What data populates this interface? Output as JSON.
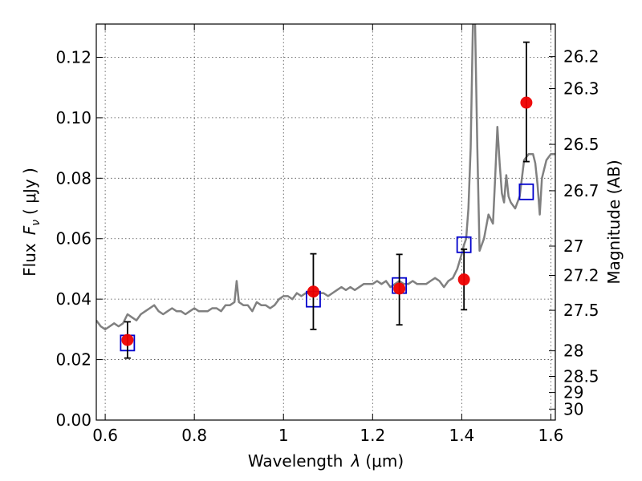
{
  "chart_data": {
    "type": "scatter",
    "xlabel": "Wavelength",
    "xlabel_symbol": "λ",
    "xlabel_unit": "(μm)",
    "ylabel": "Flux",
    "ylabel_symbol": "F",
    "ylabel_subscript": "ν",
    "ylabel_unit": "( μJy )",
    "y2label": "Magnitude (AB)",
    "xlim": [
      0.58,
      1.61
    ],
    "ylim": [
      0.0,
      0.131
    ],
    "grid": true,
    "x_ticks": [
      {
        "value": 0.6,
        "label": "0.6"
      },
      {
        "value": 0.8,
        "label": "0.8"
      },
      {
        "value": 1.0,
        "label": "1"
      },
      {
        "value": 1.2,
        "label": "1.2"
      },
      {
        "value": 1.4,
        "label": "1.4"
      },
      {
        "value": 1.6,
        "label": "1.6"
      }
    ],
    "y_ticks": [
      {
        "value": 0.0,
        "label": "0.00"
      },
      {
        "value": 0.02,
        "label": "0.02"
      },
      {
        "value": 0.04,
        "label": "0.04"
      },
      {
        "value": 0.06,
        "label": "0.06"
      },
      {
        "value": 0.08,
        "label": "0.08"
      },
      {
        "value": 0.1,
        "label": "0.10"
      },
      {
        "value": 0.12,
        "label": "0.12"
      }
    ],
    "y2_ticks": [
      {
        "value": 26.2,
        "label": "26.2"
      },
      {
        "value": 26.3,
        "label": "26.3"
      },
      {
        "value": 26.5,
        "label": "26.5"
      },
      {
        "value": 26.7,
        "label": "26.7"
      },
      {
        "value": 27.0,
        "label": "27"
      },
      {
        "value": 27.2,
        "label": "27.2"
      },
      {
        "value": 27.5,
        "label": "27.5"
      },
      {
        "value": 28.0,
        "label": "28"
      },
      {
        "value": 28.5,
        "label": "28.5"
      },
      {
        "value": 29.0,
        "label": "29"
      },
      {
        "value": 30.0,
        "label": "30"
      }
    ],
    "series": [
      {
        "kind": "line",
        "color": "#808080",
        "x": [
          0.58,
          0.59,
          0.6,
          0.61,
          0.62,
          0.63,
          0.64,
          0.65,
          0.66,
          0.67,
          0.68,
          0.69,
          0.7,
          0.71,
          0.72,
          0.73,
          0.74,
          0.75,
          0.76,
          0.77,
          0.78,
          0.79,
          0.8,
          0.81,
          0.82,
          0.83,
          0.84,
          0.85,
          0.86,
          0.87,
          0.88,
          0.89,
          0.895,
          0.9,
          0.91,
          0.92,
          0.93,
          0.94,
          0.95,
          0.96,
          0.97,
          0.98,
          0.99,
          1.0,
          1.01,
          1.02,
          1.03,
          1.04,
          1.05,
          1.06,
          1.07,
          1.08,
          1.09,
          1.1,
          1.11,
          1.12,
          1.13,
          1.14,
          1.15,
          1.16,
          1.17,
          1.18,
          1.19,
          1.2,
          1.21,
          1.22,
          1.23,
          1.24,
          1.25,
          1.26,
          1.27,
          1.28,
          1.29,
          1.3,
          1.31,
          1.32,
          1.33,
          1.34,
          1.35,
          1.36,
          1.37,
          1.38,
          1.39,
          1.4,
          1.405,
          1.41,
          1.415,
          1.42,
          1.425,
          1.43,
          1.435,
          1.44,
          1.45,
          1.46,
          1.47,
          1.475,
          1.48,
          1.485,
          1.49,
          1.495,
          1.5,
          1.505,
          1.51,
          1.52,
          1.53,
          1.54,
          1.55,
          1.56,
          1.565,
          1.57,
          1.575,
          1.58,
          1.59,
          1.6,
          1.61
        ],
        "y": [
          0.033,
          0.031,
          0.03,
          0.031,
          0.032,
          0.031,
          0.032,
          0.035,
          0.034,
          0.033,
          0.035,
          0.036,
          0.037,
          0.038,
          0.036,
          0.035,
          0.036,
          0.037,
          0.036,
          0.036,
          0.035,
          0.036,
          0.037,
          0.036,
          0.036,
          0.036,
          0.037,
          0.037,
          0.036,
          0.038,
          0.038,
          0.039,
          0.046,
          0.039,
          0.038,
          0.038,
          0.036,
          0.039,
          0.038,
          0.038,
          0.037,
          0.038,
          0.04,
          0.041,
          0.041,
          0.04,
          0.042,
          0.041,
          0.042,
          0.042,
          0.041,
          0.042,
          0.042,
          0.041,
          0.042,
          0.043,
          0.044,
          0.043,
          0.044,
          0.043,
          0.044,
          0.045,
          0.045,
          0.045,
          0.046,
          0.045,
          0.046,
          0.044,
          0.045,
          0.046,
          0.045,
          0.045,
          0.046,
          0.045,
          0.045,
          0.045,
          0.046,
          0.047,
          0.046,
          0.044,
          0.046,
          0.047,
          0.05,
          0.055,
          0.058,
          0.06,
          0.07,
          0.09,
          0.131,
          0.131,
          0.09,
          0.056,
          0.06,
          0.068,
          0.065,
          0.08,
          0.097,
          0.085,
          0.075,
          0.072,
          0.081,
          0.074,
          0.072,
          0.07,
          0.074,
          0.086,
          0.088,
          0.088,
          0.085,
          0.078,
          0.068,
          0.08,
          0.086,
          0.088,
          0.088
        ]
      },
      {
        "kind": "points",
        "marker": "square",
        "color": "#0000cc",
        "x": [
          0.65,
          1.067,
          1.26,
          1.405,
          1.545
        ],
        "y": [
          0.0255,
          0.04,
          0.0445,
          0.058,
          0.0755
        ]
      },
      {
        "kind": "points",
        "marker": "circle",
        "color": "#ee0000",
        "x": [
          0.65,
          1.067,
          1.26,
          1.405,
          1.545
        ],
        "y": [
          0.0265,
          0.0425,
          0.0435,
          0.0465,
          0.105
        ],
        "yerr_low": [
          0.0205,
          0.03,
          0.0315,
          0.0365,
          0.0855
        ],
        "yerr_high": [
          0.0325,
          0.055,
          0.0548,
          0.0565,
          0.125
        ]
      }
    ]
  }
}
